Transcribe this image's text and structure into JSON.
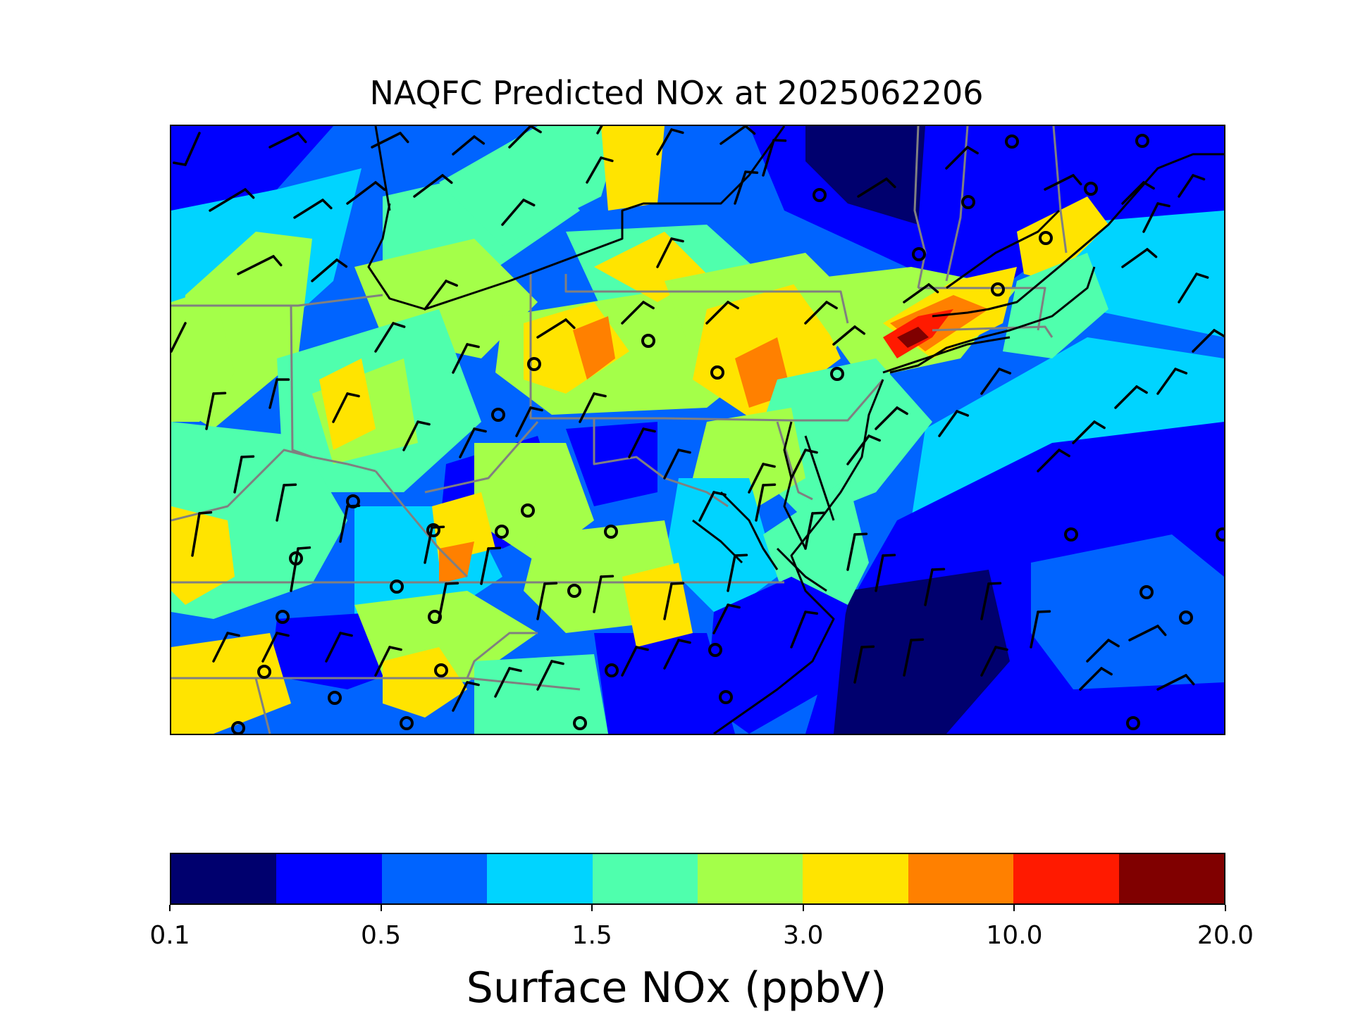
{
  "title": "NAQFC Predicted NOx at 2025062206",
  "map": {
    "field": "Surface NOx",
    "region": "Eastern United States (Ohio Valley to New England and Mid-Atlantic coast)",
    "layers": [
      "gridded NOx concentration",
      "wind barbs",
      "state boundaries",
      "coastlines"
    ],
    "boundary_colors": {
      "state": "#808080",
      "coast": "#000000"
    }
  },
  "colorbar": {
    "title": "Surface NOx (ppbV)",
    "ticks": [
      "0.1",
      "0.5",
      "1.5",
      "3.0",
      "10.0",
      "20.0"
    ],
    "colors": [
      "#00006e",
      "#0000ff",
      "#0064ff",
      "#00d4ff",
      "#4fffad",
      "#a4ff49",
      "#ffe400",
      "#ff8000",
      "#ff1a00",
      "#800000"
    ]
  }
}
